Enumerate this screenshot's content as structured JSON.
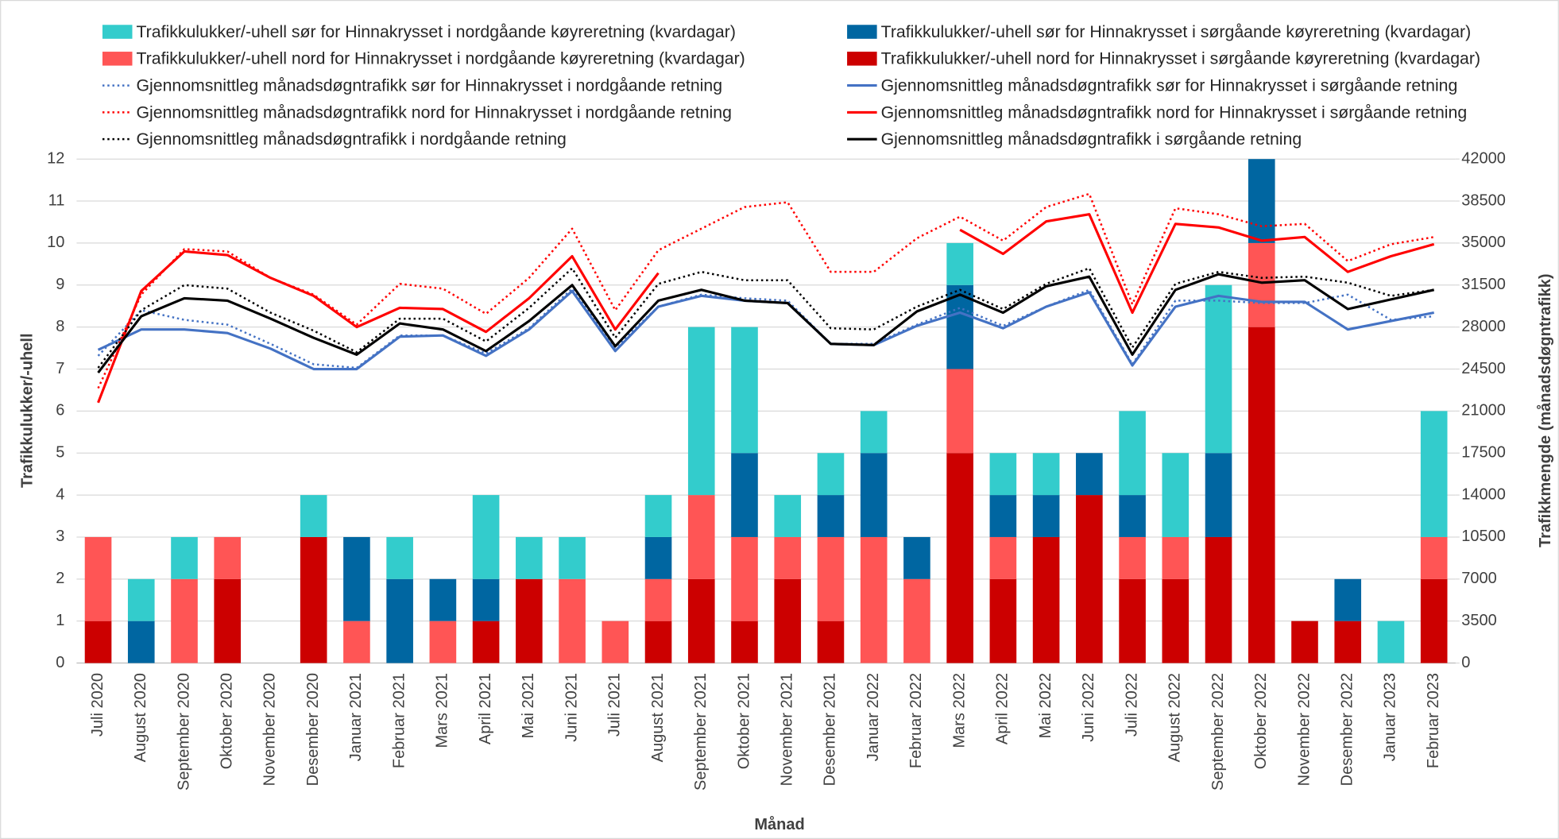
{
  "chart_data": {
    "type": "bar",
    "xlabel": "Månad",
    "ylabel": "Trafikkulukker/-uhell",
    "y2label": "Trafikkmengde (månadsdøgntrafikk)",
    "categories": [
      "Juli 2020",
      "August 2020",
      "September 2020",
      "Oktober 2020",
      "November 2020",
      "Desember 2020",
      "Januar 2021",
      "Februar 2021",
      "Mars 2021",
      "April 2021",
      "Mai 2021",
      "Juni 2021",
      "Juli 2021",
      "August 2021",
      "September 2021",
      "Oktober 2021",
      "November 2021",
      "Desember 2021",
      "Januar 2022",
      "Februar 2022",
      "Mars 2022",
      "April 2022",
      "Mai 2022",
      "Juni 2022",
      "Juli 2022",
      "August 2022",
      "September 2022",
      "Oktober 2022",
      "November 2022",
      "Desember 2022",
      "Januar 2023",
      "Februar 2023"
    ],
    "ylim": [
      0,
      12
    ],
    "yticks": [
      0,
      1,
      2,
      3,
      4,
      5,
      6,
      7,
      8,
      9,
      10,
      11,
      12
    ],
    "y2lim": [
      0,
      42000
    ],
    "y2ticks": [
      0,
      3500,
      7000,
      10500,
      14000,
      17500,
      21000,
      24500,
      28000,
      31500,
      35000,
      38500,
      42000
    ],
    "grid": true,
    "stacked": true,
    "series": [
      {
        "name": "Trafikkulukker/-uhell sør for Hinnakrysset i nordgåande køyreretning (kvardagar)",
        "type": "bar",
        "color": "#33CCCC",
        "values": [
          0,
          1,
          1,
          0,
          0,
          1,
          0,
          1,
          0,
          2,
          1,
          1,
          0,
          1,
          4,
          3,
          1,
          1,
          1,
          0,
          1,
          1,
          1,
          0,
          2,
          2,
          4,
          0,
          0,
          0,
          1,
          3
        ]
      },
      {
        "name": "Trafikkulukker/-uhell sør for Hinnakrysset i sørgåande køyreretning (kvardagar)",
        "type": "bar",
        "color": "#0066A1",
        "values": [
          0,
          1,
          0,
          0,
          0,
          0,
          2,
          2,
          1,
          1,
          0,
          0,
          0,
          1,
          0,
          2,
          0,
          1,
          2,
          1,
          2,
          1,
          1,
          1,
          1,
          0,
          2,
          2,
          0,
          1,
          0,
          0
        ]
      },
      {
        "name": "Trafikkulukker/-uhell nord for Hinnakrysset i nordgåande køyreretning (kvardagar)",
        "type": "bar",
        "color": "#FF5555",
        "values": [
          2,
          0,
          2,
          1,
          0,
          0,
          1,
          0,
          1,
          0,
          0,
          2,
          1,
          1,
          2,
          2,
          1,
          2,
          3,
          2,
          2,
          1,
          0,
          0,
          1,
          1,
          0,
          2,
          0,
          0,
          0,
          1
        ]
      },
      {
        "name": "Trafikkulukker/-uhell nord for Hinnakrysset i sørgåande køyreretning (kvardagar)",
        "type": "bar",
        "color": "#CC0000",
        "values": [
          1,
          0,
          0,
          2,
          0,
          3,
          0,
          0,
          0,
          1,
          2,
          0,
          0,
          1,
          2,
          1,
          2,
          1,
          0,
          0,
          5,
          2,
          3,
          4,
          2,
          2,
          3,
          8,
          1,
          1,
          0,
          2
        ]
      },
      {
        "name": "Gjennomsnittleg månadsdøgntrafikk sør for Hinnakrysset i nordgåande retning",
        "type": "line",
        "style": "dotted",
        "axis": "y2",
        "color": "#4472C4",
        "values": [
          25600,
          29400,
          28600,
          28200,
          26600,
          24900,
          24600,
          27300,
          27300,
          25800,
          27900,
          31200,
          26300,
          29700,
          30700,
          30400,
          30200,
          26600,
          26600,
          28200,
          29600,
          28100,
          29700,
          31100,
          24900,
          30200,
          30200,
          30000,
          30000,
          30700,
          28600,
          28900
        ]
      },
      {
        "name": "Gjennomsnittleg månadsdøgntrafikk sør for Hinnakrysset i sørgåande retning",
        "type": "line",
        "style": "solid",
        "axis": "y2",
        "color": "#4472C4",
        "values": [
          26100,
          27800,
          27800,
          27500,
          26200,
          24500,
          24500,
          27200,
          27300,
          25600,
          27800,
          31000,
          26000,
          29700,
          30600,
          30200,
          30000,
          26600,
          26500,
          28100,
          29200,
          27900,
          29700,
          30900,
          24800,
          29700,
          30600,
          30100,
          30100,
          27800,
          28500,
          29200
        ]
      },
      {
        "name": "Gjennomsnittleg månadsdøgntrafikk nord for Hinnakrysset i nordgåande retning",
        "type": "line",
        "style": "dotted",
        "axis": "y2",
        "color": "#FF0000",
        "values": [
          22900,
          30700,
          34500,
          34300,
          32100,
          30700,
          28200,
          31600,
          31200,
          29100,
          32100,
          36200,
          29400,
          34400,
          36200,
          38000,
          38400,
          32600,
          32600,
          35400,
          37200,
          35200,
          38000,
          39100,
          29900,
          37900,
          37400,
          36400,
          36600,
          33500,
          34900,
          35500
        ]
      },
      {
        "name": "Gjennomsnittleg månadsdøgntrafikk nord for Hinnakrysset i sørgåande retning",
        "type": "line",
        "style": "solid",
        "axis": "y2",
        "color": "#FF0000",
        "values": [
          21700,
          31000,
          34300,
          34000,
          32100,
          30600,
          28000,
          29600,
          29500,
          27600,
          30400,
          33900,
          27800,
          32500,
          null,
          null,
          null,
          null,
          null,
          null,
          36100,
          34100,
          36800,
          37400,
          29200,
          36600,
          36300,
          35200,
          35500,
          32600,
          33900,
          34900
        ]
      },
      {
        "name": "Gjennomsnittleg månadsdøgntrafikk i nordgåande retning",
        "type": "line",
        "style": "dotted",
        "axis": "y2",
        "color": "#000000",
        "values": [
          24600,
          29400,
          31500,
          31200,
          29200,
          27700,
          25900,
          28700,
          28700,
          26800,
          29600,
          32900,
          27100,
          31600,
          32600,
          31900,
          31900,
          27900,
          27800,
          29700,
          31100,
          29500,
          31600,
          32900,
          26300,
          31600,
          32600,
          32100,
          32200,
          31700,
          30600,
          31100
        ]
      },
      {
        "name": "Gjennomsnittleg månadsdøgntrafikk i sørgåande retning",
        "type": "line",
        "style": "solid",
        "axis": "y2",
        "color": "#000000",
        "values": [
          24200,
          28900,
          30400,
          30200,
          28700,
          27100,
          25700,
          28300,
          27800,
          26000,
          28500,
          31500,
          26400,
          30200,
          31100,
          30200,
          30000,
          26600,
          26500,
          29300,
          30700,
          29200,
          31400,
          32200,
          25700,
          31100,
          32400,
          31700,
          31900,
          29500,
          30300,
          31100
        ]
      }
    ]
  }
}
